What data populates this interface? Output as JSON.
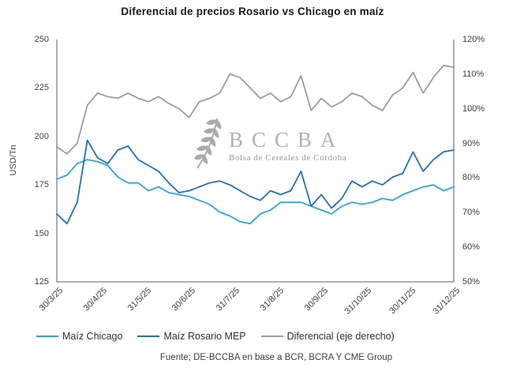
{
  "title": "Diferencial de precios Rosario vs Chicago en maíz",
  "watermark": {
    "icon": "wheat-icon",
    "acronym": "B C C B A",
    "acronym_display": "BCCBA",
    "subtitle": "Bolsa de Cereales de Córdoba"
  },
  "footer": "Fuente; DE-BCCBA en base a BCR, BCRA Y CME Group",
  "left_axis": {
    "label": "USD/Tn",
    "ticks": [
      "250",
      "225",
      "200",
      "175",
      "150",
      "125"
    ]
  },
  "right_axis": {
    "ticks": [
      "120%",
      "110%",
      "100%",
      "90%",
      "80%",
      "70%",
      "60%",
      "50%"
    ]
  },
  "legend": [
    {
      "label": "Maíz Chicago",
      "color": "#29A8E0"
    },
    {
      "label": "Maíz Rosario MEP",
      "color": "#1F72BC"
    },
    {
      "label": "Diferencial (eje derecho)",
      "color": "#9C9C9C"
    }
  ],
  "colors": {
    "axis_line": "#808080",
    "tick_text": "#404040",
    "maiz_chicago": "#29A8E0",
    "maiz_rosario_mep": "#1F72BC",
    "diferencial": "#9C9C9C",
    "watermark_gray": "#AFB2B5"
  },
  "chart_data": {
    "type": "line",
    "title": "Diferencial de precios Rosario vs Chicago en maíz",
    "x_tick_labels": [
      "30/3/25",
      "30/4/25",
      "31/5/25",
      "30/6/25",
      "31/7/25",
      "31/8/25",
      "30/9/25",
      "31/10/25",
      "30/11/25",
      "31/12/25"
    ],
    "x_note": "weekly samples from 30/3/25 to 31/12/25",
    "left_ylabel": "USD/Tn",
    "left_ylim": [
      125,
      250
    ],
    "right_ylim": [
      50,
      120
    ],
    "grid": false,
    "legend_position": "bottom",
    "series": [
      {
        "name": "Maíz Chicago",
        "axis": "left",
        "color": "#29A8E0",
        "values": [
          178,
          180,
          186,
          188,
          187,
          185,
          179,
          176,
          176,
          172,
          174,
          171,
          170,
          169,
          167,
          165,
          161,
          159,
          156,
          155,
          160,
          162,
          166,
          166,
          166,
          164,
          162,
          160,
          164,
          166,
          165,
          166,
          168,
          167,
          170,
          172,
          174,
          175,
          172,
          174
        ]
      },
      {
        "name": "Maíz Rosario MEP",
        "axis": "left",
        "color": "#1F72BC",
        "values": [
          160,
          155,
          166,
          198,
          189,
          186,
          193,
          195,
          188,
          185,
          182,
          176,
          171,
          172,
          174,
          176,
          177,
          175,
          172,
          169,
          167,
          172,
          170,
          172,
          182,
          164,
          170,
          163,
          168,
          177,
          174,
          177,
          175,
          179,
          181,
          192,
          182,
          188,
          192,
          193
        ]
      },
      {
        "name": "Diferencial (eje derecho)",
        "axis": "right",
        "color": "#9C9C9C",
        "values": [
          89,
          87,
          90,
          101,
          104.5,
          103.5,
          103,
          104.5,
          103,
          102,
          103.5,
          101.5,
          100,
          97.5,
          102,
          103,
          104.5,
          110,
          109,
          106,
          103,
          104.5,
          102,
          103.5,
          109.5,
          99.5,
          103,
          100.5,
          102,
          104.5,
          103.5,
          101,
          99.5,
          104,
          106,
          110.5,
          104.5,
          109,
          112.5,
          112
        ]
      }
    ]
  }
}
